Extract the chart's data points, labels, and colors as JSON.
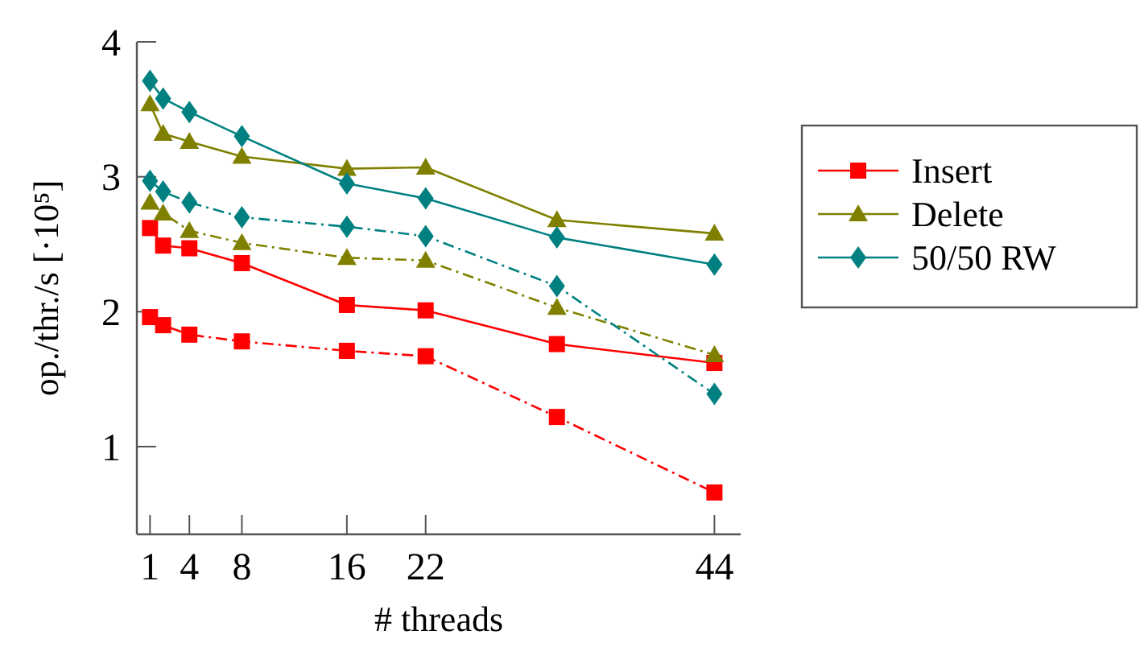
{
  "chart_data": {
    "type": "line",
    "xlabel": "# threads",
    "ylabel": "op./thr./s [·10⁵]",
    "xlim": [
      0,
      46
    ],
    "xticks": [
      1,
      4,
      8,
      16,
      22,
      44
    ],
    "ylim": [
      0.35,
      4
    ],
    "yticks": [
      1,
      2,
      3,
      4
    ],
    "x": [
      1,
      2,
      4,
      8,
      16,
      22,
      32,
      44
    ],
    "legend": "right",
    "grid": false,
    "series": [
      {
        "name": "Insert",
        "color": "#ff0000",
        "marker": "square",
        "line_style": "solid",
        "values": [
          2.62,
          2.49,
          2.47,
          2.36,
          2.05,
          2.01,
          1.76,
          1.62
        ]
      },
      {
        "name": "Delete",
        "color": "#808000",
        "marker": "triangle",
        "line_style": "solid",
        "values": [
          3.54,
          3.32,
          3.26,
          3.15,
          3.06,
          3.07,
          2.68,
          2.58
        ]
      },
      {
        "name": "50/50 RW",
        "color": "#008080",
        "marker": "diamond",
        "line_style": "solid",
        "values": [
          3.71,
          3.58,
          3.48,
          3.3,
          2.95,
          2.84,
          2.55,
          2.35
        ]
      },
      {
        "color": "#ff0000",
        "marker": "square",
        "line_style": "dashed",
        "values": [
          1.96,
          1.9,
          1.83,
          1.78,
          1.71,
          1.67,
          1.22,
          0.66
        ]
      },
      {
        "color": "#808000",
        "marker": "triangle",
        "line_style": "dashed",
        "values": [
          2.81,
          2.73,
          2.6,
          2.51,
          2.4,
          2.38,
          2.03,
          1.68
        ]
      },
      {
        "color": "#008080",
        "marker": "diamond",
        "line_style": "dashed",
        "values": [
          2.97,
          2.89,
          2.81,
          2.7,
          2.63,
          2.56,
          2.19,
          1.39
        ]
      }
    ]
  }
}
